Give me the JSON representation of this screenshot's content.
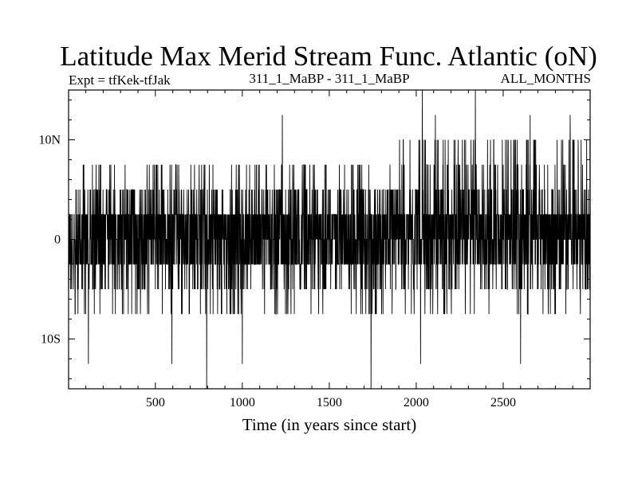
{
  "chart_data": {
    "type": "line",
    "title": "Latitude Max Merid Stream Func. Atlantic (oN)",
    "subtitle_left": "Expt = tfKek-tfJak",
    "subtitle_center": "311_1_MaBP - 311_1_MaBP",
    "subtitle_right": "ALL_MONTHS",
    "xlabel": "Time (in years since start)",
    "ylabel": "",
    "xlim": [
      1,
      3000
    ],
    "ylim": [
      -15,
      15
    ],
    "x_ticks": [
      500,
      1000,
      1500,
      2000,
      2500
    ],
    "y_ticks": [
      {
        "value": 10,
        "label": "10N"
      },
      {
        "value": 0,
        "label": "0"
      },
      {
        "value": -10,
        "label": "10S"
      }
    ],
    "grid": false,
    "legend": "none",
    "line_color": "#000000",
    "series": [
      {
        "x_start": 1,
        "x_step": 1,
        "levels": [
          -12.5,
          -10,
          -7.5,
          -5,
          -2.5,
          0,
          2.5,
          5,
          7.5,
          10,
          12.5
        ],
        "extremes": [
          {
            "x": 2035,
            "y": 15
          },
          {
            "x": 2340,
            "y": 15
          },
          {
            "x": 795,
            "y": -15
          },
          {
            "x": 1740,
            "y": -15
          },
          {
            "x": 1230,
            "y": 12.5
          },
          {
            "x": 2110,
            "y": 12.5
          },
          {
            "x": 2655,
            "y": 12.5
          },
          {
            "x": 2885,
            "y": 12.5
          },
          {
            "x": 115,
            "y": -12.5
          },
          {
            "x": 595,
            "y": -12.5
          },
          {
            "x": 1000,
            "y": -12.5
          },
          {
            "x": 2025,
            "y": -12.5
          },
          {
            "x": 2600,
            "y": -12.5
          }
        ]
      }
    ]
  }
}
